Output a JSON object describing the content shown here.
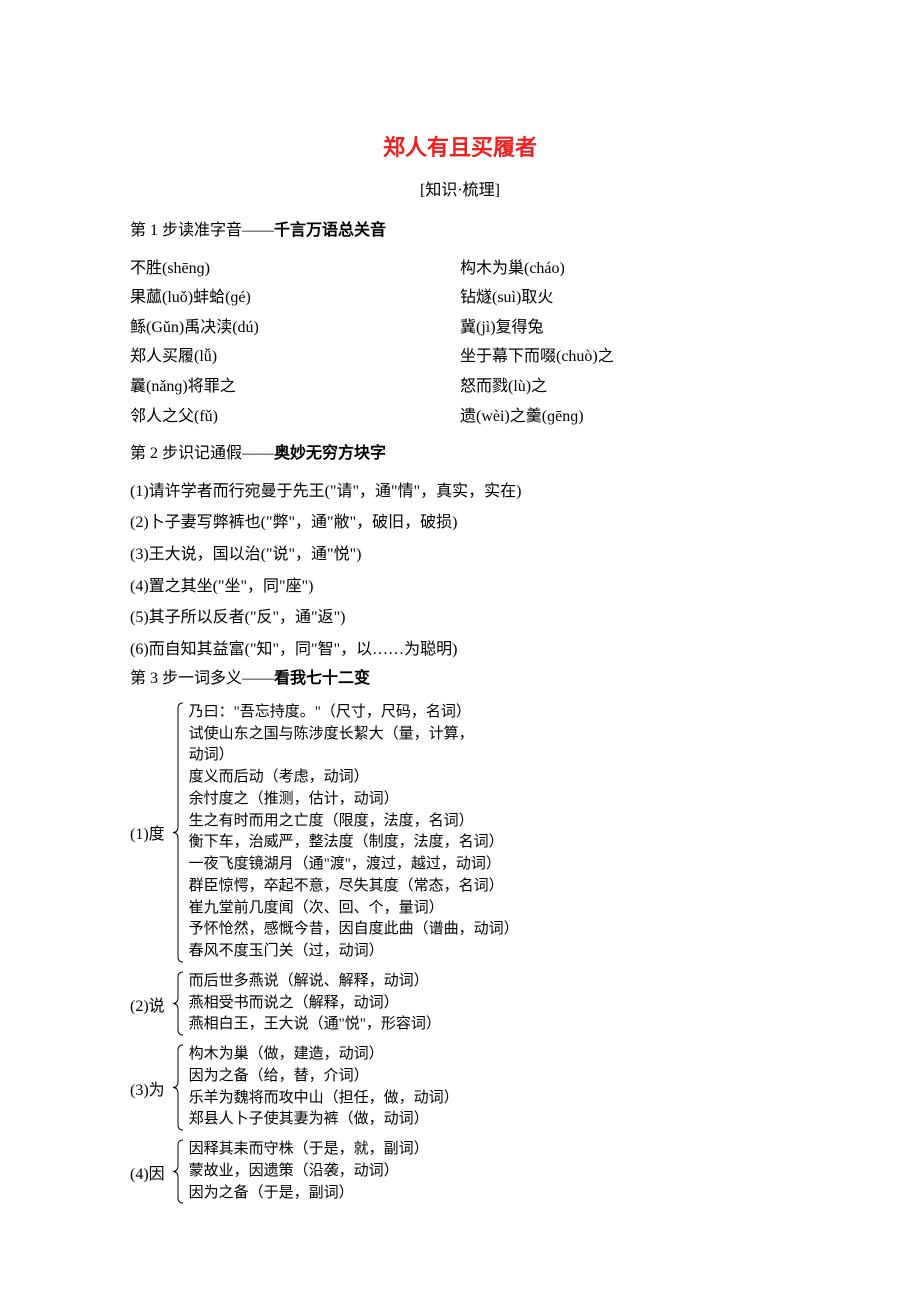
{
  "colors": {
    "title": "#ee2020",
    "text": "#000000",
    "background": "#ffffff",
    "brace": "#000000"
  },
  "fonts": {
    "title_size": 22,
    "body_size": 16,
    "entry_size": 15
  },
  "title": "郑人有且买履者",
  "subtitle": "[知识·梳理]",
  "step1": {
    "heading_prefix": "第 1 步读准字音——",
    "heading_bold": "千言万语总关音",
    "items": [
      "不胜(shēnɡ)",
      "构木为巢(cháo)",
      "果蓏(luǒ)蚌蛤(ɡé)",
      "钻燧(suì)取火",
      "鲧(Gǔn)禹决渎(dú)",
      "冀(jì)复得兔",
      "郑人买履(lǚ)",
      "坐于幕下而啜(chuò)之",
      "曩(nǎnɡ)将罪之",
      "怒而戮(lù)之",
      "邻人之父(fǔ)",
      "遗(wèi)之羹(ɡēnɡ)"
    ]
  },
  "step2": {
    "heading_prefix": "第 2 步识记通假——",
    "heading_bold": "奥妙无穷方块字",
    "items": [
      "(1)请许学者而行宛曼于先王(\"请\"，通\"情\"，真实，实在)",
      "(2)卜子妻写弊裤也(\"弊\"，通\"敝\"，破旧，破损)",
      "(3)王大说，国以治(\"说\"，通\"悦\")",
      "(4)置之其坐(\"坐\"，同\"座\")",
      "(5)其子所以反者(\"反\"，通\"返\")",
      "(6)而自知其益富(\"知\"，同\"智\"，以……为聪明)"
    ]
  },
  "step3": {
    "heading_prefix": "第 3 步一词多义——",
    "heading_bold": "看我七十二变",
    "entries": [
      {
        "label": "(1)度",
        "lines": [
          "乃曰：\"吾忘持度。\"（尺寸，尺码，名词）",
          "试使山东之国与陈涉度长絜大（量，计算，",
          "动词）",
          "度义而后动（考虑，动词）",
          "余忖度之（推测，估计，动词）",
          "生之有时而用之亡度（限度，法度，名词）",
          "衡下车，治威严，整法度（制度，法度，名词）",
          "一夜飞度镜湖月（通\"渡\"，渡过，越过，动词）",
          "群臣惊愕，卒起不意，尽失其度（常态，名词）",
          "崔九堂前几度闻（次、回、个，量词）",
          "予怀怆然，感慨今昔，因自度此曲（谱曲，动词）",
          "春风不度玉门关（过，动词）"
        ]
      },
      {
        "label": "(2)说",
        "lines": [
          "而后世多燕说（解说、解释，动词）",
          "燕相受书而说之（解释，动词）",
          "燕相白王，王大说（通\"悦\"，形容词）"
        ]
      },
      {
        "label": "(3)为",
        "lines": [
          "构木为巢（做，建造，动词）",
          "因为之备（给，替，介词）",
          "乐羊为魏将而攻中山（担任，做，动词）",
          "郑县人卜子使其妻为裤（做，动词）"
        ]
      },
      {
        "label": "(4)因",
        "lines": [
          "因释其耒而守株（于是，就，副词）",
          "蒙故业，因遗策（沿袭，动词）",
          "因为之备（于是，副词）"
        ]
      }
    ]
  }
}
